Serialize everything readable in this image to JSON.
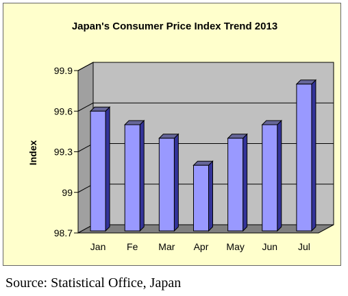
{
  "chart_data": {
    "type": "bar",
    "title": "Japan's Consumer Price Index Trend 2013",
    "xlabel": "",
    "ylabel": "Index",
    "categories": [
      "Jan",
      "Fe",
      "Mar",
      "Apr",
      "May",
      "Jun",
      "Jul"
    ],
    "values": [
      99.6,
      99.5,
      99.4,
      99.2,
      99.4,
      99.5,
      99.8
    ],
    "ylim": [
      98.7,
      99.9
    ],
    "yticks": [
      "98.7",
      "99",
      "99.3",
      "99.6",
      "99.9"
    ],
    "ytick_values": [
      98.7,
      99.0,
      99.3,
      99.6,
      99.9
    ],
    "grid": true,
    "legend": "none",
    "style": "3d-bar",
    "colors": {
      "bar_front": "#9999ff",
      "bar_side": "#333399",
      "bar_top": "#666699",
      "plot_back": "#c0c0c0",
      "plot_floor": "#808080",
      "frame_background": "#ffffcc"
    }
  },
  "source": "Source: Statistical Office, Japan"
}
